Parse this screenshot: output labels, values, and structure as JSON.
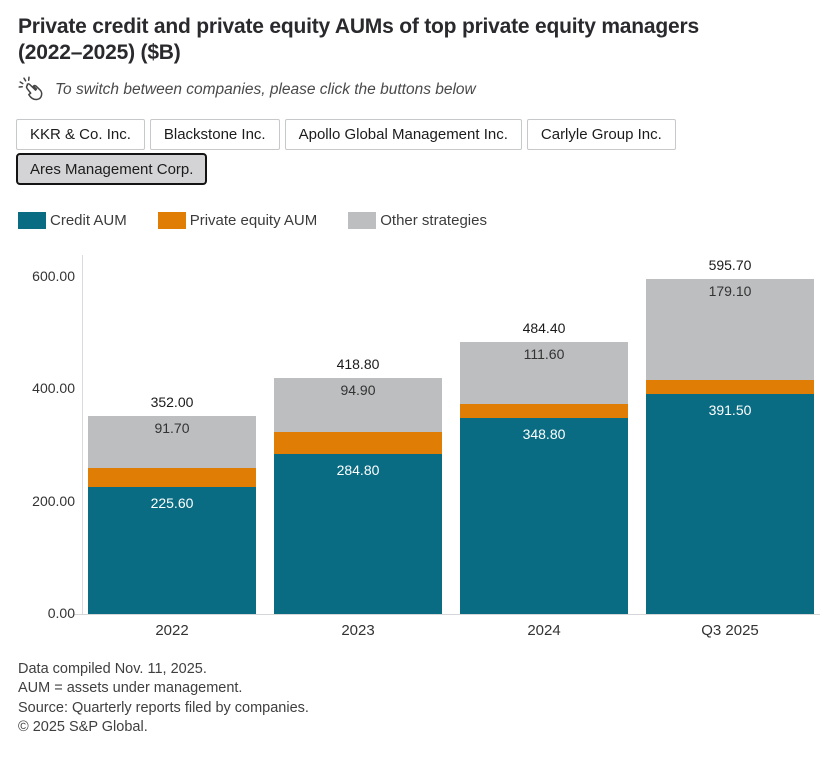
{
  "header": {
    "title": "Private credit and private equity AUMs of top private equity managers (2022–2025) ($B)",
    "note": "To switch between companies, please click the buttons below"
  },
  "company_buttons": [
    {
      "label": "KKR & Co. Inc.",
      "selected": false
    },
    {
      "label": "Blackstone Inc.",
      "selected": false
    },
    {
      "label": "Apollo Global Management Inc.",
      "selected": false
    },
    {
      "label": "Carlyle Group Inc.",
      "selected": false
    },
    {
      "label": "Ares Management Corp.",
      "selected": true
    }
  ],
  "legend": {
    "items": [
      {
        "label": "Credit AUM",
        "color": "#0a6c83"
      },
      {
        "label": "Private equity AUM",
        "color": "#e07d05"
      },
      {
        "label": "Other strategies",
        "color": "#bdbec0"
      }
    ]
  },
  "chart_data": {
    "type": "bar",
    "stacked": true,
    "title": "Private credit and private equity AUMs of top private equity managers (2022–2025) ($B)",
    "categories": [
      "2022",
      "2023",
      "2024",
      "Q3 2025"
    ],
    "series": [
      {
        "name": "Credit AUM",
        "color": "#0a6c83",
        "values": [
          225.6,
          284.8,
          348.8,
          391.5
        ],
        "labels": [
          "225.60",
          "284.80",
          "348.80",
          "391.50"
        ],
        "show_labels": true,
        "label_color": "#ffffff"
      },
      {
        "name": "Private equity AUM",
        "color": "#e07d05",
        "values": [
          34.7,
          39.1,
          24.0,
          25.1
        ],
        "labels": null,
        "show_labels": false,
        "estimated_from_totals": true
      },
      {
        "name": "Other strategies",
        "color": "#bdbec0",
        "values": [
          91.7,
          94.9,
          111.6,
          179.1
        ],
        "labels": [
          "91.70",
          "94.90",
          "111.60",
          "179.10"
        ],
        "show_labels": true,
        "label_color": "#333333"
      }
    ],
    "totals": [
      352.0,
      418.8,
      484.4,
      595.7
    ],
    "total_labels": [
      "352.00",
      "418.80",
      "484.40",
      "595.70"
    ],
    "y_axis": {
      "ticks": [
        {
          "value": 600,
          "label": "600.00"
        },
        {
          "value": 400,
          "label": "400.00"
        },
        {
          "value": 200,
          "label": "200.00"
        },
        {
          "value": 0,
          "label": "0.00"
        }
      ],
      "ylim": [
        0,
        600
      ]
    },
    "grid": false,
    "legend_position": "top"
  },
  "footer": {
    "lines": [
      "Data compiled Nov. 11, 2025.",
      "AUM = assets under management.",
      "Source: Quarterly reports filed by companies.",
      "© 2025 S&P Global."
    ]
  }
}
